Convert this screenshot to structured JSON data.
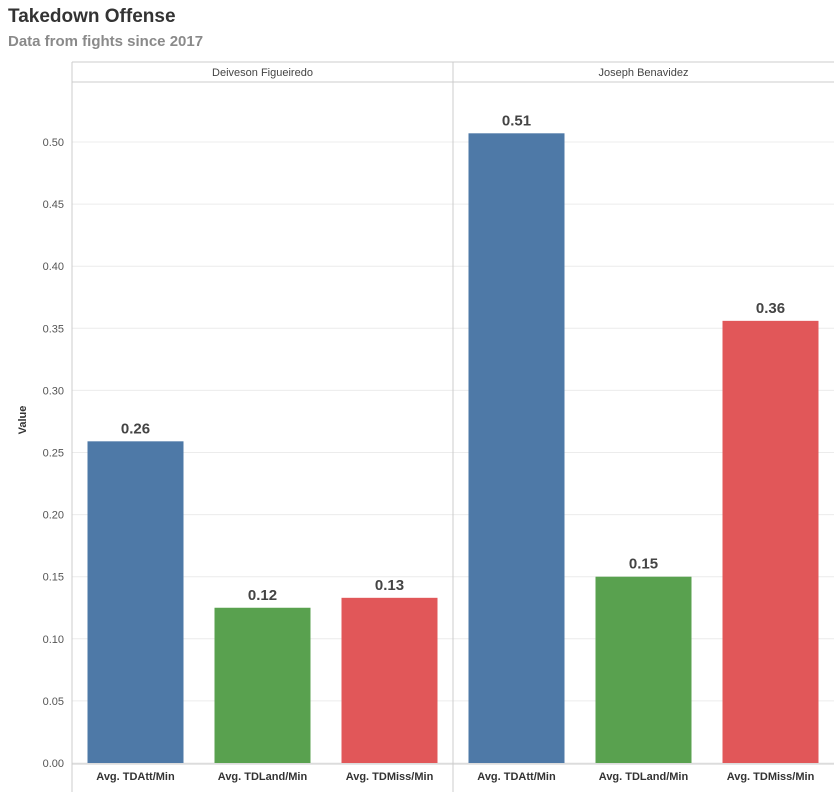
{
  "header": {
    "title": "Takedown Offense",
    "subtitle": "Data from fights since 2017"
  },
  "chart_data": {
    "type": "bar",
    "title": "Takedown Offense",
    "subtitle": "Data from fights since 2017",
    "ylabel": "Value",
    "xlabel": "",
    "ylim": [
      0,
      0.55
    ],
    "yticks": [
      "0.00",
      "0.05",
      "0.10",
      "0.15",
      "0.20",
      "0.25",
      "0.30",
      "0.35",
      "0.40",
      "0.45",
      "0.50"
    ],
    "grid": true,
    "categories": [
      "Avg. TDAtt/Min",
      "Avg. TDLand/Min",
      "Avg. TDMiss/Min"
    ],
    "category_colors": [
      "#4e79a7",
      "#59a14f",
      "#e15759"
    ],
    "panels": [
      {
        "name": "Deiveson Figueiredo",
        "values": [
          0.259,
          0.125,
          0.133
        ],
        "labels": [
          "0.26",
          "0.12",
          "0.13"
        ]
      },
      {
        "name": "Joseph Benavidez",
        "values": [
          0.507,
          0.15,
          0.356
        ],
        "labels": [
          "0.51",
          "0.15",
          "0.36"
        ]
      }
    ]
  }
}
